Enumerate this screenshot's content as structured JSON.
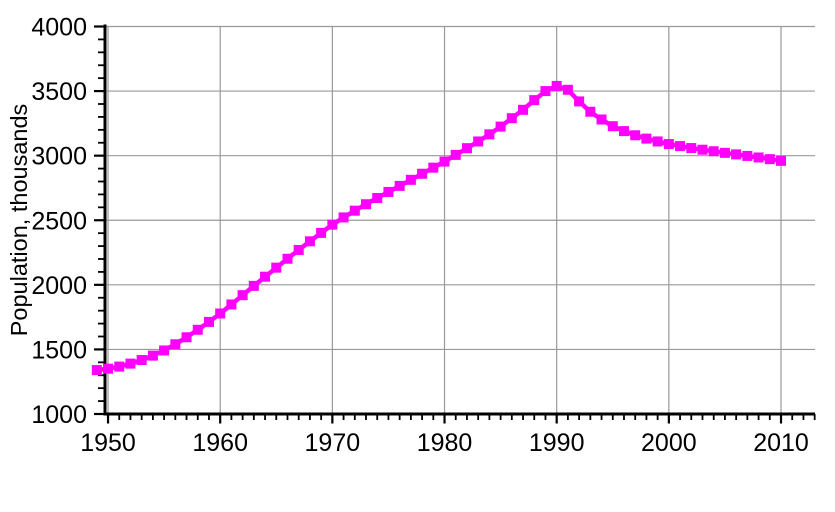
{
  "chart_data": {
    "type": "line",
    "title": "",
    "xlabel": "",
    "ylabel": "Population, thousands",
    "legend": null,
    "grid": true,
    "marker": "square",
    "series_color": "#FF00FF",
    "gridline_color": "#999999",
    "axis_color": "#000000",
    "background_color": "#ffffff",
    "xlim": [
      1949.73,
      2013.03
    ],
    "ylim": [
      1000,
      4000
    ],
    "xticks": [
      1950,
      1960,
      1970,
      1980,
      1990,
      2000,
      2010
    ],
    "yticks": [
      1000,
      1500,
      2000,
      2500,
      3000,
      3500,
      4000
    ],
    "x_minor_step": 1,
    "y_minor_step": 100,
    "x": [
      1949,
      1950,
      1951,
      1952,
      1953,
      1954,
      1955,
      1956,
      1957,
      1958,
      1959,
      1960,
      1961,
      1962,
      1963,
      1964,
      1965,
      1966,
      1967,
      1968,
      1969,
      1970,
      1971,
      1972,
      1973,
      1974,
      1975,
      1976,
      1977,
      1978,
      1979,
      1980,
      1981,
      1982,
      1983,
      1984,
      1985,
      1986,
      1987,
      1988,
      1989,
      1990,
      1991,
      1992,
      1993,
      1994,
      1995,
      1996,
      1997,
      1998,
      1999,
      2000,
      2001,
      2002,
      2003,
      2004,
      2005,
      2006,
      2007,
      2008,
      2009,
      2010
    ],
    "values": [
      1340,
      1351,
      1367,
      1390,
      1418,
      1452,
      1492,
      1540,
      1594,
      1652,
      1713,
      1778,
      1848,
      1920,
      1992,
      2063,
      2133,
      2202,
      2270,
      2337,
      2402,
      2466,
      2522,
      2574,
      2624,
      2672,
      2719,
      2766,
      2813,
      2860,
      2907,
      2954,
      3006,
      3058,
      3110,
      3165,
      3225,
      3290,
      3355,
      3430,
      3500,
      3540,
      3510,
      3420,
      3340,
      3280,
      3228,
      3190,
      3158,
      3132,
      3110,
      3090,
      3074,
      3059,
      3046,
      3034,
      3022,
      3010,
      2998,
      2986,
      2973,
      2960
    ]
  }
}
